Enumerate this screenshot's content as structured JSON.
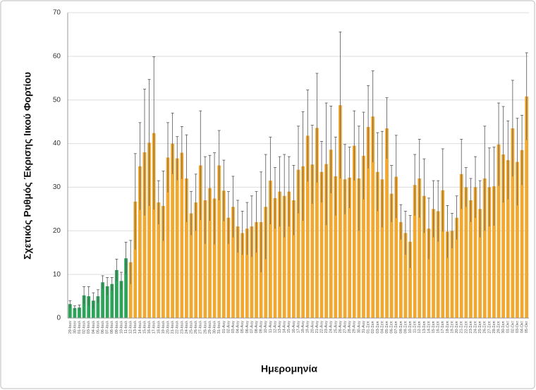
{
  "chart_data": {
    "type": "bar",
    "y_label": "Σχετικός Ρυθμός Έκρισης Ιικού Φορτίου",
    "x_label": "Ημερομηνία",
    "categories": [
      "29-Ιουν",
      "30-Ιουν",
      "01-Ιουλ",
      "02-Ιουλ",
      "03-Ιουλ",
      "04-Ιουλ",
      "05-Ιουλ",
      "06-Ιουλ",
      "07-Ιουλ",
      "08-Ιουλ",
      "09-Ιουλ",
      "10-Ιουλ",
      "11-Ιουλ",
      "12-Ιουλ",
      "13-Ιουλ",
      "14-Ιουλ",
      "15-Ιουλ",
      "16-Ιουλ",
      "17-Ιουλ",
      "18-Ιουλ",
      "19-Ιουλ",
      "20-Ιουλ",
      "21-Ιουλ",
      "22-Ιουλ",
      "23-Ιουλ",
      "24-Ιουλ",
      "25-Ιουλ",
      "26-Ιουλ",
      "27-Ιουλ",
      "28-Ιουλ",
      "29-Ιουλ",
      "30-Ιουλ",
      "31-Ιουλ",
      "01-Αυγ",
      "02-Αυγ",
      "03-Αυγ",
      "04-Αυγ",
      "05-Αυγ",
      "06-Αυγ",
      "07-Αυγ",
      "08-Αυγ",
      "09-Αυγ",
      "10-Αυγ",
      "11-Αυγ",
      "12-Αυγ",
      "13-Αυγ",
      "14-Αυγ",
      "15-Αυγ",
      "16-Αυγ",
      "17-Αυγ",
      "18-Αυγ",
      "19-Αυγ",
      "20-Αυγ",
      "21-Αυγ",
      "22-Αυγ",
      "23-Αυγ",
      "24-Αυγ",
      "25-Αυγ",
      "26-Αυγ",
      "27-Αυγ",
      "28-Αυγ",
      "29-Αυγ",
      "30-Αυγ",
      "31-Αυγ",
      "01-Σεπ",
      "02-Σεπ",
      "03-Σεπ",
      "04-Σεπ",
      "05-Σεπ",
      "06-Σεπ",
      "07-Σεπ",
      "08-Σεπ",
      "09-Σεπ",
      "10-Σεπ",
      "11-Σεπ",
      "12-Σεπ",
      "13-Σεπ",
      "14-Σεπ",
      "15-Σεπ",
      "16-Σεπ",
      "17-Σεπ",
      "18-Σεπ",
      "19-Σεπ",
      "20-Σεπ",
      "21-Σεπ",
      "22-Σεπ",
      "23-Σεπ",
      "24-Σεπ",
      "25-Σεπ",
      "26-Σεπ",
      "27-Σεπ",
      "28-Σεπ",
      "29-Σεπ",
      "30-Σεπ",
      "01-Οκτ",
      "02-Οκτ",
      "03-Οκτ",
      "04-Οκτ",
      "05-Οκτ"
    ],
    "values": [
      3.2,
      2.3,
      2.4,
      5.2,
      5.0,
      4.0,
      5.0,
      8.2,
      7.3,
      7.8,
      11.0,
      8.5,
      13.7,
      12.8,
      26.7,
      34.8,
      38,
      40.2,
      42.4,
      26.5,
      25.7,
      36.8,
      40,
      36.6,
      37.9,
      32,
      24,
      26.5,
      35,
      27,
      29.8,
      27.4,
      35,
      29.2,
      23,
      25.5,
      21,
      19.5,
      20.5,
      21,
      22,
      22,
      25.5,
      31.5,
      27.5,
      29,
      28,
      29,
      27,
      34,
      34.8,
      41.8,
      35.2,
      43.6,
      33.5,
      35.3,
      38.6,
      32.5,
      48.8,
      31.8,
      32.2,
      39.5,
      32,
      37.2,
      43.8,
      46.2,
      33.5,
      31.8,
      43.5,
      28.5,
      32.4,
      22,
      19.5,
      17.5,
      30.5,
      32,
      28,
      20.5,
      25,
      24.5,
      29.3,
      19.8,
      20,
      23,
      33,
      30,
      27,
      30,
      25,
      32,
      30,
      30.2,
      39.8,
      37.5,
      36.2,
      43.5,
      35.8,
      38.5,
      50.8
    ],
    "errors": [
      0.8,
      0.5,
      0.6,
      2,
      2.2,
      1.8,
      1.5,
      1.5,
      2,
      1.5,
      2.5,
      2,
      3.7,
      5,
      11,
      10,
      14.5,
      14.5,
      17.5,
      5,
      8,
      8,
      7,
      5,
      6,
      10,
      5,
      6.5,
      12.5,
      10,
      7.5,
      10.5,
      8,
      7,
      6,
      7,
      6,
      5,
      6,
      7,
      7,
      11.5,
      12,
      10,
      7,
      8,
      9.5,
      8,
      8,
      10,
      12.5,
      10.5,
      9,
      12.5,
      7,
      14,
      10,
      9,
      16.8,
      8,
      7,
      8,
      12,
      10,
      9.5,
      10.5,
      9,
      11,
      7,
      6.5,
      9.5,
      4,
      5,
      6,
      7,
      9,
      8.5,
      7,
      6.5,
      7,
      9.5,
      6,
      4,
      5,
      8,
      4.5,
      5,
      7,
      6.5,
      12,
      9,
      9,
      9.5,
      11,
      9,
      11,
      10,
      8,
      10
    ],
    "colors": [
      "#2ea35a",
      "#2ea35a",
      "#2ea35a",
      "#2ea35a",
      "#2ea35a",
      "#2ea35a",
      "#2ea35a",
      "#2ea35a",
      "#2ea35a",
      "#2ea35a",
      "#2ea35a",
      "#2ea35a",
      "#2ea35a",
      "#f0a830",
      "#f0a830",
      "#f0a830",
      "#f0a830",
      "#f0a830",
      "#f0a830",
      "#f0a830",
      "#f0a830",
      "#f0a830",
      "#f0a830",
      "#f0a830",
      "#f0a830",
      "#f0a830",
      "#f0a830",
      "#f0a830",
      "#f0a830",
      "#f0a830",
      "#f0a830",
      "#f0a830",
      "#f0a830",
      "#f0a830",
      "#f0a830",
      "#f0a830",
      "#f0a830",
      "#f0a830",
      "#f0a830",
      "#f0a830",
      "#f0a830",
      "#f0a830",
      "#f0a830",
      "#f0a830",
      "#f0a830",
      "#f0a830",
      "#f0a830",
      "#f0a830",
      "#f0a830",
      "#f0a830",
      "#f0a830",
      "#f0a830",
      "#f0a830",
      "#f0a830",
      "#f0a830",
      "#f0a830",
      "#f0a830",
      "#f0a830",
      "#f0a830",
      "#f0a830",
      "#f0a830",
      "#f0a830",
      "#f0a830",
      "#f0a830",
      "#f0a830",
      "#f0a830",
      "#f0a830",
      "#f0a830",
      "#f0a830",
      "#f0a830",
      "#f0a830",
      "#f0a830",
      "#f0a830",
      "#f0a830",
      "#f0a830",
      "#f0a830",
      "#f0a830",
      "#f0a830",
      "#f0a830",
      "#f0a830",
      "#f0a830",
      "#f0a830",
      "#f0a830",
      "#f0a830",
      "#f0a830",
      "#f0a830",
      "#f0a830",
      "#f0a830",
      "#f0a830",
      "#f0a830",
      "#f0a830",
      "#f0a830",
      "#f0a830",
      "#f0a830",
      "#f0a830",
      "#f0a830",
      "#f0a830",
      "#f0a830",
      "#f0a830"
    ],
    "ylim": [
      0,
      70
    ],
    "yticks": [
      0,
      10,
      20,
      30,
      40,
      50,
      60,
      70
    ],
    "grid": true
  }
}
